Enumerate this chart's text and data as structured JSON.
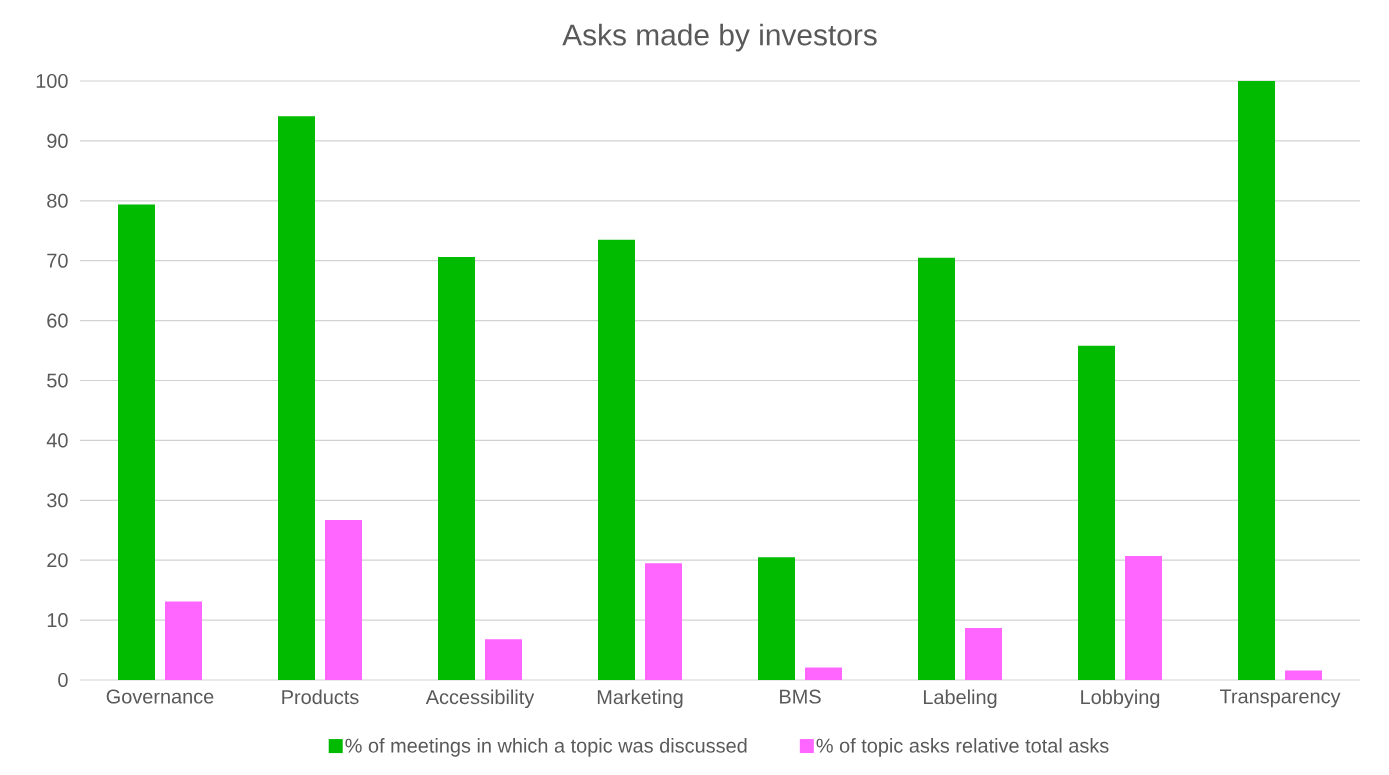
{
  "chart_data": {
    "type": "bar",
    "title": "Asks made by investors",
    "categories": [
      "Governance",
      "Products",
      "Accessibility",
      "Marketing",
      "BMS",
      "Labeling",
      "Lobbying",
      "Transparency"
    ],
    "series": [
      {
        "name": "% of meetings in which a topic was discussed",
        "color": "#00bb00",
        "values": [
          79.4,
          94.1,
          70.6,
          73.5,
          20.5,
          70.5,
          55.8,
          100
        ]
      },
      {
        "name": "% of topic asks relative total asks",
        "color": "#ff66ff",
        "values": [
          13.1,
          26.7,
          6.8,
          19.5,
          2.1,
          8.7,
          20.7,
          1.6
        ]
      }
    ],
    "ylim": [
      0,
      100
    ],
    "yticks": [
      0,
      10,
      20,
      30,
      40,
      50,
      60,
      70,
      80,
      90,
      100
    ],
    "grid": "y",
    "legend": "bottom"
  }
}
